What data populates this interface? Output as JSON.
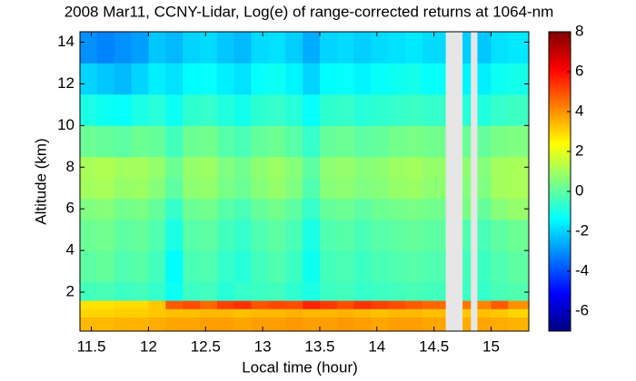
{
  "chart_data": {
    "type": "heatmap",
    "title": "2008 Mar11, CCNY-Lidar, Log(e) of range-corrected returns at 1064-nm",
    "xlabel": "Local time (hour)",
    "ylabel": "Altitude (km)",
    "x_bins": [
      11.4,
      11.55,
      11.7,
      11.85,
      12.0,
      12.15,
      12.3,
      12.45,
      12.6,
      12.75,
      12.9,
      13.05,
      13.2,
      13.35,
      13.5,
      13.65,
      13.8,
      13.95,
      14.1,
      14.25,
      14.4,
      14.6,
      14.75,
      14.82,
      14.88,
      15.0,
      15.15,
      15.33
    ],
    "y_bins": [
      0.13,
      0.8,
      1.2,
      1.6,
      2.5,
      4,
      5.5,
      6.5,
      7.5,
      8.5,
      10,
      11.5,
      13,
      14.5
    ],
    "z": [
      [
        3.4,
        3.4,
        3.5,
        3.5,
        3.6,
        3.7,
        3.7,
        3.8,
        3.8,
        3.7,
        3.8,
        3.8,
        3.9,
        3.8,
        3.8,
        3.9,
        3.8,
        3.7,
        3.8,
        3.8,
        3.7,
        null,
        3.6,
        null,
        3.7,
        3.6,
        3.5
      ],
      [
        3.0,
        3.0,
        3.1,
        3.1,
        3.2,
        3.3,
        3.3,
        3.4,
        3.4,
        3.3,
        3.4,
        3.4,
        3.5,
        3.4,
        3.4,
        3.5,
        3.4,
        3.3,
        3.4,
        3.4,
        3.3,
        null,
        3.2,
        null,
        3.3,
        3.2,
        3.0
      ],
      [
        2.8,
        2.8,
        2.9,
        2.9,
        3.2,
        4.8,
        5.0,
        4.6,
        5.2,
        5.4,
        4.9,
        5.1,
        5.0,
        5.6,
        5.3,
        5.0,
        5.4,
        5.2,
        5.0,
        4.8,
        4.6,
        null,
        4.4,
        null,
        4.2,
        4.8,
        4.0
      ],
      [
        -0.4,
        -0.3,
        -0.5,
        -0.4,
        -0.6,
        -1.2,
        -0.5,
        -0.4,
        -0.8,
        -0.6,
        -0.5,
        -0.4,
        -0.7,
        -1.0,
        -0.5,
        -0.4,
        -0.6,
        -0.5,
        -0.4,
        -0.3,
        -0.4,
        null,
        -0.5,
        null,
        -0.6,
        -0.3,
        -0.2
      ],
      [
        0.0,
        0.1,
        -0.2,
        -0.1,
        -0.4,
        -1.4,
        -0.3,
        -0.2,
        -0.6,
        -0.8,
        -0.4,
        -0.2,
        -0.5,
        -1.2,
        -0.4,
        -0.3,
        -0.5,
        -0.3,
        -0.2,
        -0.1,
        -0.2,
        null,
        -0.4,
        null,
        -0.5,
        -0.2,
        0.0
      ],
      [
        0.2,
        0.3,
        0.0,
        0.1,
        -0.2,
        -1.0,
        -0.1,
        0.0,
        -0.4,
        -0.6,
        -0.2,
        0.0,
        -0.3,
        -1.0,
        -0.2,
        -0.1,
        -0.3,
        -0.1,
        0.0,
        0.1,
        0.0,
        null,
        -0.2,
        null,
        -0.3,
        0.0,
        0.2
      ],
      [
        0.5,
        0.6,
        0.3,
        0.4,
        0.1,
        -0.6,
        0.2,
        0.3,
        -0.1,
        -0.3,
        0.1,
        0.3,
        0.0,
        -0.6,
        0.1,
        0.2,
        0.0,
        0.2,
        0.3,
        0.4,
        0.3,
        null,
        0.4,
        null,
        0.1,
        0.6,
        0.8
      ],
      [
        1.0,
        1.1,
        0.8,
        0.9,
        0.6,
        0.0,
        0.7,
        0.8,
        0.4,
        0.2,
        0.6,
        0.8,
        0.5,
        -0.2,
        0.6,
        0.7,
        0.5,
        0.6,
        0.8,
        0.9,
        0.7,
        null,
        0.6,
        null,
        0.5,
        1.0,
        1.1
      ],
      [
        1.1,
        1.2,
        1.0,
        1.0,
        0.8,
        0.2,
        0.8,
        0.9,
        0.5,
        0.3,
        0.7,
        0.9,
        0.6,
        0.0,
        0.7,
        0.8,
        0.6,
        0.7,
        0.9,
        1.0,
        0.8,
        null,
        0.7,
        null,
        0.6,
        1.0,
        1.1
      ],
      [
        0.2,
        0.1,
        0.0,
        0.2,
        0.1,
        -0.4,
        0.2,
        0.3,
        -0.1,
        -0.3,
        0.1,
        0.2,
        -0.1,
        -0.6,
        0.1,
        0.2,
        0.0,
        0.1,
        0.3,
        0.4,
        0.3,
        null,
        0.2,
        null,
        0.1,
        0.4,
        0.5
      ],
      [
        -1.0,
        -1.2,
        -1.3,
        -1.0,
        -0.8,
        -1.2,
        -0.7,
        -0.6,
        -0.9,
        -1.1,
        -0.7,
        -0.6,
        -0.8,
        -1.3,
        -0.7,
        -0.6,
        -0.8,
        -0.7,
        -0.6,
        -0.5,
        -0.6,
        null,
        -0.8,
        null,
        -0.9,
        -0.6,
        -0.5
      ],
      [
        -2.0,
        -2.2,
        -2.4,
        -2.0,
        -1.6,
        -1.8,
        -1.4,
        -1.3,
        -1.6,
        -1.8,
        -1.3,
        -1.2,
        -1.5,
        -2.0,
        -1.4,
        -1.3,
        -1.5,
        -1.3,
        -1.2,
        -1.1,
        -1.3,
        null,
        -1.5,
        null,
        -1.6,
        -1.2,
        -1.1
      ],
      [
        -3.0,
        -3.2,
        -3.0,
        -2.8,
        -2.2,
        -2.4,
        -2.0,
        -1.9,
        -2.2,
        -2.4,
        -1.9,
        -1.8,
        -2.1,
        -2.6,
        -2.0,
        -1.9,
        -2.1,
        -1.9,
        -1.8,
        -1.7,
        -1.9,
        null,
        -2.1,
        null,
        -2.2,
        -1.8,
        -1.7
      ]
    ],
    "colormap": "jet",
    "xlim": [
      11.4,
      15.33
    ],
    "ylim": [
      0.13,
      14.5
    ],
    "clim": [
      -7,
      8
    ],
    "xticks": [
      11.5,
      12,
      12.5,
      13,
      13.5,
      14,
      14.5,
      15
    ],
    "yticks": [
      2,
      4,
      6,
      8,
      10,
      12,
      14
    ],
    "cticks": [
      -6,
      -4,
      -2,
      0,
      2,
      4,
      6,
      8
    ]
  }
}
